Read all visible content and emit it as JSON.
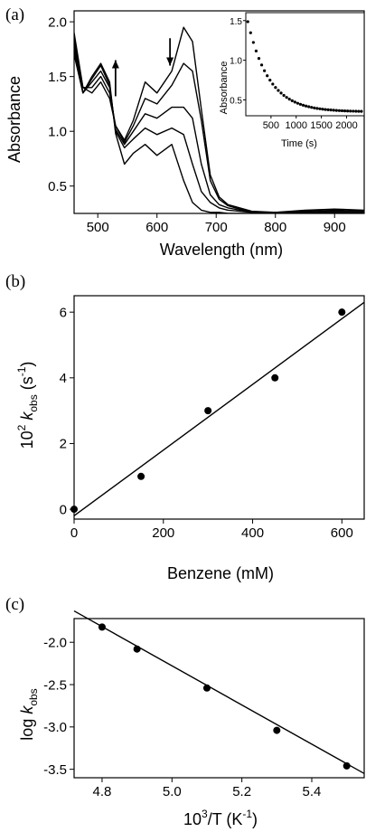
{
  "chart_data": [
    {
      "type": "line",
      "panel_label": "(a)",
      "xlabel": "Wavelength (nm)",
      "ylabel": "Absorbance",
      "xlim": [
        460,
        950
      ],
      "ylim": [
        0.25,
        2.1
      ],
      "xticks": [
        500,
        600,
        700,
        800,
        900
      ],
      "yticks": [
        0.5,
        1.0,
        1.5,
        2.0
      ],
      "ytick_labels": [
        "0.5",
        "1.0",
        "1.5",
        "2.0"
      ],
      "arrows": [
        {
          "direction": "up",
          "x": 530,
          "y_from": 1.32,
          "y_to": 1.65
        },
        {
          "direction": "down",
          "x": 622,
          "y_from": 1.85,
          "y_to": 1.6
        }
      ],
      "series": [
        {
          "x": [
            460,
            475,
            490,
            505,
            520,
            530,
            545,
            560,
            580,
            600,
            625,
            645,
            660,
            675,
            690,
            705,
            720,
            760,
            800,
            850,
            900,
            950
          ],
          "y": [
            1.9,
            1.4,
            1.35,
            1.45,
            1.3,
            1.05,
            0.92,
            1.1,
            1.45,
            1.35,
            1.55,
            1.95,
            1.82,
            1.2,
            0.6,
            0.4,
            0.33,
            0.27,
            0.26,
            0.28,
            0.29,
            0.28
          ]
        },
        {
          "x": [
            460,
            475,
            490,
            505,
            520,
            530,
            545,
            560,
            580,
            600,
            625,
            645,
            660,
            675,
            690,
            705,
            720,
            760,
            800,
            850,
            900,
            950
          ],
          "y": [
            1.85,
            1.4,
            1.4,
            1.5,
            1.35,
            1.05,
            0.9,
            1.05,
            1.3,
            1.25,
            1.42,
            1.62,
            1.55,
            1.1,
            0.55,
            0.38,
            0.32,
            0.26,
            0.26,
            0.27,
            0.28,
            0.27
          ]
        },
        {
          "x": [
            460,
            475,
            490,
            505,
            520,
            530,
            545,
            560,
            580,
            600,
            625,
            645,
            660,
            675,
            690,
            705,
            720,
            760,
            800,
            850,
            900,
            950
          ],
          "y": [
            1.8,
            1.35,
            1.45,
            1.55,
            1.4,
            1.02,
            0.88,
            1.0,
            1.16,
            1.12,
            1.22,
            1.22,
            1.12,
            0.7,
            0.42,
            0.33,
            0.3,
            0.26,
            0.26,
            0.26,
            0.27,
            0.27
          ]
        },
        {
          "x": [
            460,
            475,
            490,
            505,
            520,
            530,
            545,
            560,
            580,
            600,
            625,
            645,
            660,
            675,
            690,
            705,
            720,
            760,
            800,
            850,
            900,
            950
          ],
          "y": [
            1.75,
            1.35,
            1.48,
            1.6,
            1.42,
            1.0,
            0.85,
            0.93,
            1.03,
            0.97,
            1.03,
            0.97,
            0.7,
            0.45,
            0.35,
            0.3,
            0.28,
            0.26,
            0.26,
            0.26,
            0.26,
            0.26
          ]
        },
        {
          "x": [
            460,
            475,
            490,
            505,
            520,
            530,
            545,
            560,
            580,
            600,
            625,
            645,
            660,
            675,
            690,
            705,
            720,
            760,
            800,
            850,
            900,
            950
          ],
          "y": [
            1.7,
            1.35,
            1.5,
            1.62,
            1.45,
            0.98,
            0.7,
            0.8,
            0.88,
            0.78,
            0.88,
            0.55,
            0.35,
            0.28,
            0.26,
            0.26,
            0.25,
            0.25,
            0.25,
            0.25,
            0.25,
            0.25
          ]
        }
      ],
      "inset": {
        "type": "scatter",
        "xlabel": "Time (s)",
        "ylabel": "Absorbance",
        "xlim": [
          0,
          2350
        ],
        "ylim": [
          0.3,
          1.6
        ],
        "xticks": [
          500,
          1000,
          1500,
          2000
        ],
        "yticks": [
          0.5,
          1.0,
          1.5
        ],
        "ytick_labels": [
          "0.5",
          "1.0",
          "1.5"
        ]
      }
    },
    {
      "type": "scatter",
      "panel_label": "(b)",
      "xlabel": "Benzene (mM)",
      "ylabel_prefix": "10",
      "ylabel_sup": "2",
      "ylabel_k": "k",
      "ylabel_sub": "obs",
      "ylabel_unit": "(s",
      "ylabel_unit_sup": "-1",
      "ylabel_close": ")",
      "xlim": [
        0,
        650
      ],
      "ylim": [
        -0.3,
        6.5
      ],
      "xticks": [
        0,
        200,
        400,
        600
      ],
      "yticks": [
        0,
        2,
        4,
        6
      ],
      "x": [
        0,
        150,
        300,
        450,
        600
      ],
      "y": [
        0,
        1,
        3,
        4,
        6
      ],
      "fit": {
        "x": [
          0,
          650
        ],
        "y": [
          -0.2,
          6.3
        ]
      }
    },
    {
      "type": "scatter",
      "panel_label": "(c)",
      "xlabel_prefix": "10",
      "xlabel_sup": "3",
      "xlabel_rest": "/T (K",
      "xlabel_sup2": "-1",
      "xlabel_close": ")",
      "ylabel_prefix": "log ",
      "ylabel_k": "k",
      "ylabel_sub": "obs",
      "xlim": [
        4.72,
        5.55
      ],
      "ylim": [
        -3.6,
        -1.72
      ],
      "xticks": [
        4.8,
        5.0,
        5.2,
        5.4
      ],
      "xtick_labels": [
        "4.8",
        "5.0",
        "5.2",
        "5.4"
      ],
      "yticks": [
        -2.0,
        -2.5,
        -3.0,
        -3.5
      ],
      "ytick_labels": [
        "-2.0",
        "-2.5",
        "-3.0",
        "-3.5"
      ],
      "x": [
        4.8,
        4.9,
        5.1,
        5.3,
        5.5
      ],
      "y": [
        -1.82,
        -2.08,
        -2.54,
        -3.04,
        -3.46
      ],
      "fit": {
        "x": [
          4.72,
          5.55
        ],
        "y": [
          -1.63,
          -3.55
        ]
      }
    }
  ]
}
